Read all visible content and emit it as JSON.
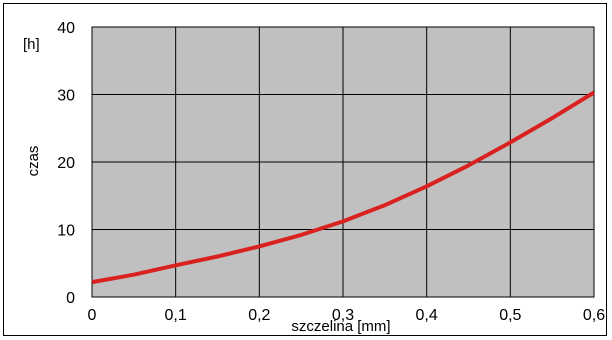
{
  "chart_data": {
    "type": "line",
    "title": "",
    "xlabel": "szczelina [mm]",
    "ylabel": "czas",
    "yunit": "[h]",
    "xlim": [
      0,
      0.6
    ],
    "ylim": [
      0,
      40
    ],
    "xticks": [
      "0",
      "0,1",
      "0,2",
      "0,3",
      "0,4",
      "0,5",
      "0,6"
    ],
    "xtick_values": [
      0,
      0.1,
      0.2,
      0.3,
      0.4,
      0.5,
      0.6
    ],
    "yticks": [
      "0",
      "10",
      "20",
      "30",
      "40"
    ],
    "ytick_values": [
      0,
      10,
      20,
      30,
      40
    ],
    "grid": true,
    "series": [
      {
        "x": [
          0,
          0.05,
          0.1,
          0.15,
          0.2,
          0.25,
          0.3,
          0.35,
          0.4,
          0.45,
          0.5,
          0.55,
          0.6
        ],
        "y": [
          2.2,
          3.3,
          4.7,
          6.0,
          7.5,
          9.2,
          11.2,
          13.6,
          16.4,
          19.5,
          22.9,
          26.5,
          30.3
        ]
      }
    ],
    "colors": {
      "plot_background": "#c0c0c0",
      "line": "#d92120",
      "grid": "#000000"
    }
  }
}
